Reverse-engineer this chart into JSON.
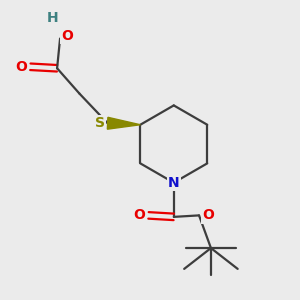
{
  "bg_color": "#ebebeb",
  "bond_color": "#3d3d3d",
  "atom_colors": {
    "O": "#e80000",
    "N": "#1010cc",
    "S": "#888800",
    "H": "#3d8080",
    "C": "#3d3d3d"
  },
  "figsize": [
    3.0,
    3.0
  ],
  "dpi": 100,
  "bond_lw": 1.6
}
